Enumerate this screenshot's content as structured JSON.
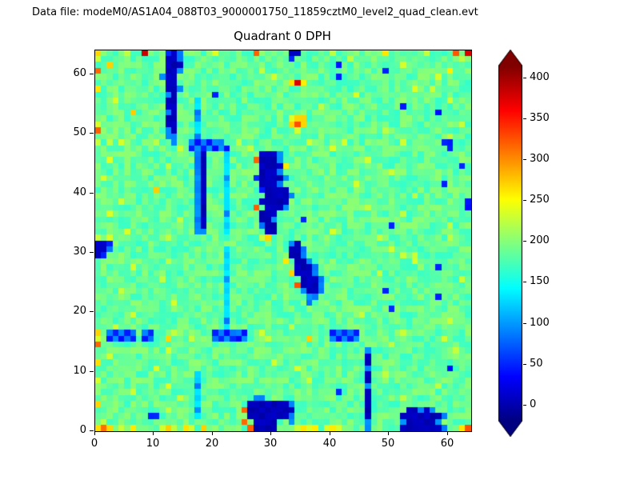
{
  "header": {
    "data_file_label": "Data file: modeM0/AS1A04_088T03_9000001750_11859cztM0_level2_quad_clean.evt"
  },
  "chart_data": {
    "type": "heatmap",
    "title": "Quadrant 0 DPH",
    "xlabel": "",
    "ylabel": "",
    "x_range": [
      0,
      64
    ],
    "y_range": [
      0,
      64
    ],
    "x_ticks": [
      0,
      10,
      20,
      30,
      40,
      50,
      60
    ],
    "y_ticks": [
      0,
      10,
      20,
      30,
      40,
      50,
      60
    ],
    "colormap": "jet",
    "colorbar": {
      "ticks": [
        0,
        50,
        100,
        150,
        200,
        250,
        300,
        350,
        400
      ],
      "vmin": -20,
      "vmax": 415,
      "extend": "both"
    },
    "value_legend": {
      ".": 185,
      ",": 168,
      "-": 205,
      "x": 150,
      "c": 130,
      "b": 90,
      "B": 45,
      "D": 5,
      "g": 230,
      "y": 265,
      "o": 320,
      "r": 380,
      "R": 430
    },
    "noise_amplitude": 20,
    "noise_seed": 7,
    "grid_rows_top_to_bottom": [
      "y....g.. r...BDb. ....g... ...o.... .DD..... g....... .y...... g....o.r",
      "g....... ....DDb. ........ ........ .B...... ...g.... ........ ......g.",
      "..y..... ....DDD. ........ ........ ........ .B...... ....g... ........",
      "o....... ....DDb. ........ ....g... ........ ........ .B...... ....y...",
      "........ ...bDD.. ........ ......g. ........ .B...... ........ ..g.....",
      "........ ....DD.. ........ ........ .yry.... ........ ........ ........",
      "y....... ....DDb. ........ ........ ........ ........ ......g. .g......",
      "........ ....bD.. ....B... ........ ........ ....g... ........ ........",
      "...g.... ....DD.. .c...... ........ ........ ........ ........ ....g...",
      "........ ....DD.. .c...... ........ ......g. ........ ....B... ........",
      "......y. ....bD.. .b...... ........ ........ ........ ........ ..B.....",
      "........ ....DD.. .b...... ........ .gyy.... ........ ........ ........",
      "g....... ....DD.. .c...... ........ .yoy.... ........ ........ ......g.",
      "o....... ....bD.. .c...... ........ ..g..... ........ .g...... ........",
      "........ ....bb.. .b...... ........ ........ ........ ........ ....g...",
      "g.g.g... ..g..b.. bBbBbb.. g....... ....g... ..g..... ....g... ...BB...",
      "........ ......g. BbBbBbB. ..g..... ........ g....... ........ ....B...",
      "........ ........ .bD...c. ....DDDb ........ ........ ........ ........",
      "..g..... ........ .bD...c. ...oDDDb ........ ......g. ........ ........",
      "........ ....g... .bD...c. ....DDDD y....... ........ ........ ......B.",
      "........ ........ .bD...c. ....DDDb ........ ........ ..g..... ........",
      ".g...... ........ .bD...b. ...BDDDD b....... ........ ........ ........",
      "........ ........ .bD...c. ....DDDb ........ ....g... ........ ...B....",
      "........ ..y..... .bD...c. ....BDDD D....... ........ ........ ........",
      "........ ........ .bD...c. .....DDD Db...... ........ ......g. ........",
      "....g... ........ .bD...c. ....DDDD D....... ........ ........ .......B",
      "........ ........ .bD...c. ...o.DDD b....... ......g. ........ .......B",
      "..g..... ........ .bD...b. ....DDD. ........ ........ ....g... ........",
      "........ ......g. .bD...c. ....DDb. ...B.... ........ ........ ........",
      "........ ........ .bD...c. ....bDD. ........ ........ ..B..... ....g...",
      ".....g.. ........ .bb...c. .....DD. ........ g....... ........ ........",
      "g.g..... ....g... ........ ....gy.. ........ ........ g....... ....g...",
      "DDB..... ........ ........ ........ .bD..... ........ ........ ........",
      "DDb..... ........ ......c. ........ .DDb.... ........ ..g..... ........",
      "DB...... ........ ......c. ........ .DDb.... ........ ....g.g. ........",
      "........ ....g... ......c. ........ y.DDb... ........ ......g. ........",
      "......g. ........ ......c. ........ ..DDDb.. ........ ........ ..B.....",
      "........ ........ ......c. ........ .yDDDb.. ........ g....... ........",
      "........ ...g.... ......b. ........ ...DDDb. ........ ........ ......g.",
      "........ ........ ......c. ........ ..oDDDb. ........ ........ ........",
      "....g... ........ ......c. ........ ...bDDb. ........ .B...... ........",
      "........ ........ ......c. ........ ....bb.. ........ ........ ..B.....",
      "........ .....g.. ......c. ........ ....b... ........ ........ ........",
      "........ ........ ......c. ........ ........ ........ ..B..... ........",
      "......g. ........ ......c. ........ ........ .....g.. ........ ........",
      "........ ........ ......b. ........ ........ ........ ........ ....g...",
      "...g.... ........ ......c. ........ .g...... ........ ........ ........",
      "y.bBbBb. bB...g.. ....BbBb bB..g... ........ BbBbB... ....g... ........",
      "g.BbBbB. Bb..y... g...bBbB Bb...g.. ....y... bBbBb... ........ ...g....",
      "o....... ........ ........ ........ ........ ........ ..g..... ........",
      "........ ....g... ........ ........ ........ ......b. ........ .....g..",
      "..g..... ........ ........ ........ ........ ......D. ........ ........",
      "y....... ........ ........ ......g. ........ ......D. ........ ........",
      "........ ..g..... ........ ........ ..g..... ......b. ........ ....B...",
      "........ ........ .c...... ........ ........ ......D. .g...... ........",
      "g....... ........ .c...... ........ ....g... ......D. ........ ........",
      "........ ....g... .b...... ........ ........ ......b. ........ ..g.....",
      "......g. ........ .c...... ........ ........ .B....D. ........ ........",
      "........ ......g. .c...... ...bb... ........ ......D. ....g... ........",
      "y....... ........ .c...... ..DDDDDD Db...... ......D. ........ ........",
      "........ ....g... .b...... .oDDDDDD DD...... ......D. .....DDb Db......",
      "........ .BB..... .c...... ..DDDDDD Db...... ......D. ....DDDD DDDb....",
      ".g...... ........ ........ .o.DDDD. .b...... ......b. ....bDDD DDb.....",
      "yoy.g.y. ...gyg.y g.y..... ..oDDDD. ..gygy.g yg....b. ....DDDD DDDb..yo"
    ]
  }
}
